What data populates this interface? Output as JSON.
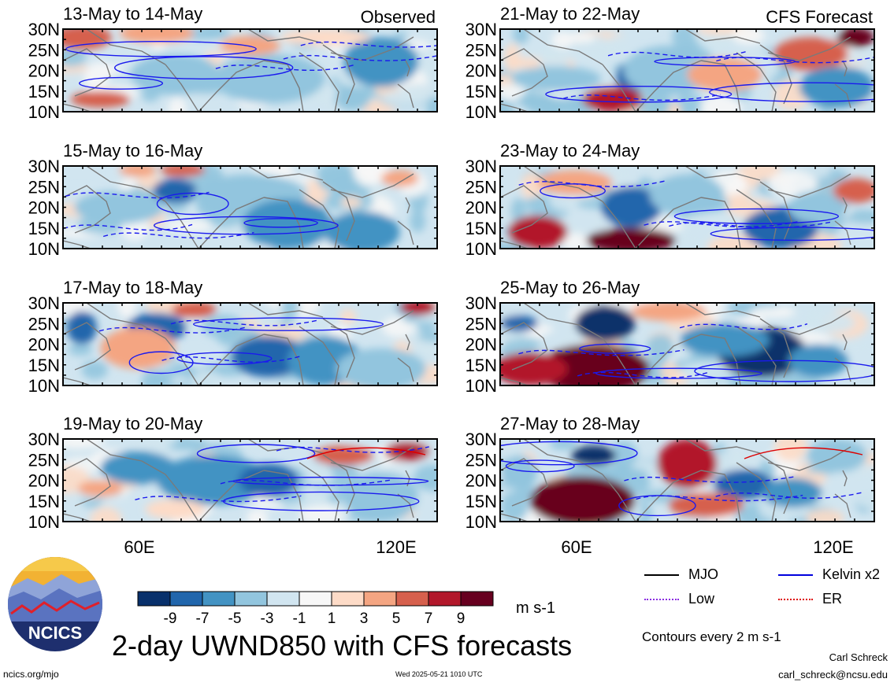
{
  "figure": {
    "title": "2-day UWND850 with CFS forecasts",
    "units": "m s-1",
    "contour_note": "Contours every 2 m s-1",
    "author": "Carl Schreck",
    "email": "carl_schreck@ncsu.edu",
    "url": "ncics.org/mjo",
    "timestamp": "Wed 2025-05-21 1010 UTC",
    "logo_text": "NCICS"
  },
  "column_labels": {
    "left": "Observed",
    "right": "CFS Forecast"
  },
  "axes": {
    "lat_labels": [
      "30N",
      "25N",
      "20N",
      "15N",
      "10N"
    ],
    "lon_labels": [
      "60E",
      "120E"
    ]
  },
  "panels_left": [
    {
      "title": "13-May to 14-May"
    },
    {
      "title": "15-May to 16-May"
    },
    {
      "title": "17-May to 18-May"
    },
    {
      "title": "19-May to 20-May"
    }
  ],
  "panels_right": [
    {
      "title": "21-May to 22-May"
    },
    {
      "title": "23-May to 24-May"
    },
    {
      "title": "25-May to 26-May"
    },
    {
      "title": "27-May to 28-May"
    }
  ],
  "colorbar": {
    "tick_labels": [
      "-9",
      "-7",
      "-5",
      "-3",
      "-1",
      "1",
      "3",
      "5",
      "7",
      "9"
    ],
    "colors": [
      "#08306b",
      "#2166ac",
      "#4393c3",
      "#92c5de",
      "#d1e5f0",
      "#f7f7f7",
      "#fddbc7",
      "#f4a582",
      "#d6604d",
      "#b2182b",
      "#67001f"
    ]
  },
  "legend": {
    "items": [
      {
        "label": "MJO",
        "color": "#000000"
      },
      {
        "label": "Kelvin x2",
        "color": "#0000dd"
      },
      {
        "label": "Low",
        "color": "#8a2be2"
      },
      {
        "label": "ER",
        "color": "#dd0000"
      }
    ]
  }
}
